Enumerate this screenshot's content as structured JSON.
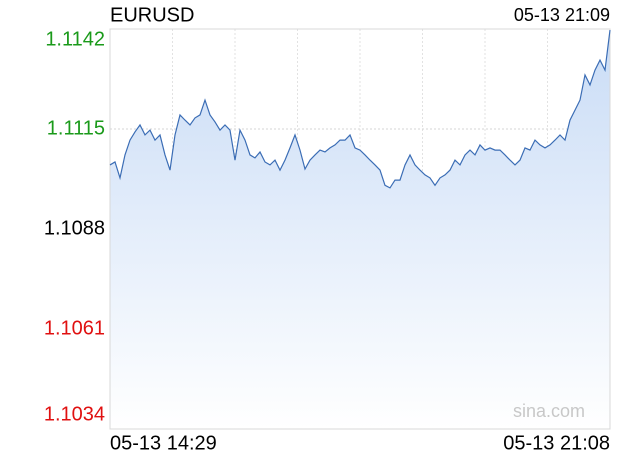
{
  "chart_data": {
    "type": "area",
    "title": "EURUSD",
    "timestamp": "05-13 21:09",
    "watermark": "sina.com",
    "categories": [
      "05-13 14:29",
      null,
      null,
      null,
      null,
      null,
      null,
      null,
      null,
      null,
      null,
      null,
      null,
      null,
      null,
      null,
      null,
      null,
      null,
      null,
      null,
      null,
      null,
      null,
      null,
      null,
      null,
      null,
      null,
      null,
      null,
      null,
      null,
      null,
      null,
      null,
      null,
      null,
      null,
      null,
      null,
      null,
      null,
      null,
      null,
      null,
      null,
      null,
      null,
      null,
      null,
      null,
      null,
      null,
      null,
      null,
      null,
      null,
      null,
      null,
      null,
      null,
      null,
      null,
      null,
      null,
      null,
      null,
      null,
      null,
      null,
      null,
      null,
      null,
      null,
      null,
      null,
      null,
      null,
      null,
      null,
      null,
      null,
      null,
      null,
      null,
      null,
      null,
      null,
      null,
      null,
      null,
      null,
      null,
      null,
      null,
      null,
      null,
      null,
      null,
      "05-13 21:08"
    ],
    "series": [
      {
        "name": "EURUSD",
        "color": "#3b6db5",
        "values": [
          1.11053,
          1.11061,
          1.11018,
          1.1108,
          1.1112,
          1.11142,
          1.11161,
          1.11134,
          1.11147,
          1.1112,
          1.11134,
          1.1108,
          1.11039,
          1.11134,
          1.11188,
          1.11174,
          1.11161,
          1.1118,
          1.11188,
          1.11228,
          1.11188,
          1.11169,
          1.11147,
          1.11161,
          1.11147,
          1.11066,
          1.11147,
          1.1112,
          1.1108,
          1.11072,
          1.11088,
          1.11061,
          1.11053,
          1.11066,
          1.11039,
          1.11066,
          1.11099,
          1.11134,
          1.11093,
          1.11042,
          1.11066,
          1.1108,
          1.11093,
          1.11088,
          1.11099,
          1.11107,
          1.1112,
          1.1112,
          1.11134,
          1.11099,
          1.11093,
          1.1108,
          1.11066,
          1.11053,
          1.11039,
          1.10998,
          1.10991,
          1.11012,
          1.11012,
          1.11053,
          1.1108,
          1.11053,
          1.11039,
          1.11026,
          1.11018,
          1.10998,
          1.11018,
          1.11026,
          1.11039,
          1.11066,
          1.11053,
          1.1108,
          1.11093,
          1.1108,
          1.11107,
          1.11093,
          1.11099,
          1.11093,
          1.11093,
          1.1108,
          1.11066,
          1.11053,
          1.11066,
          1.11099,
          1.11093,
          1.1112,
          1.11107,
          1.11099,
          1.11107,
          1.1112,
          1.11134,
          1.1112,
          1.11174,
          1.11201,
          1.11228,
          1.11296,
          1.11269,
          1.11309,
          1.11336,
          1.11309,
          1.11417
        ]
      }
    ],
    "ylim": [
      1.1034,
      1.1142
    ],
    "yticks": [
      1.1142,
      1.1115,
      1.1088,
      1.1061,
      1.1034
    ],
    "ytick_colors": [
      "#1a9a1a",
      "#1a9a1a",
      "#000000",
      "#e01010",
      "#e01010"
    ],
    "xgrid_divisions": 8,
    "grid": true
  }
}
